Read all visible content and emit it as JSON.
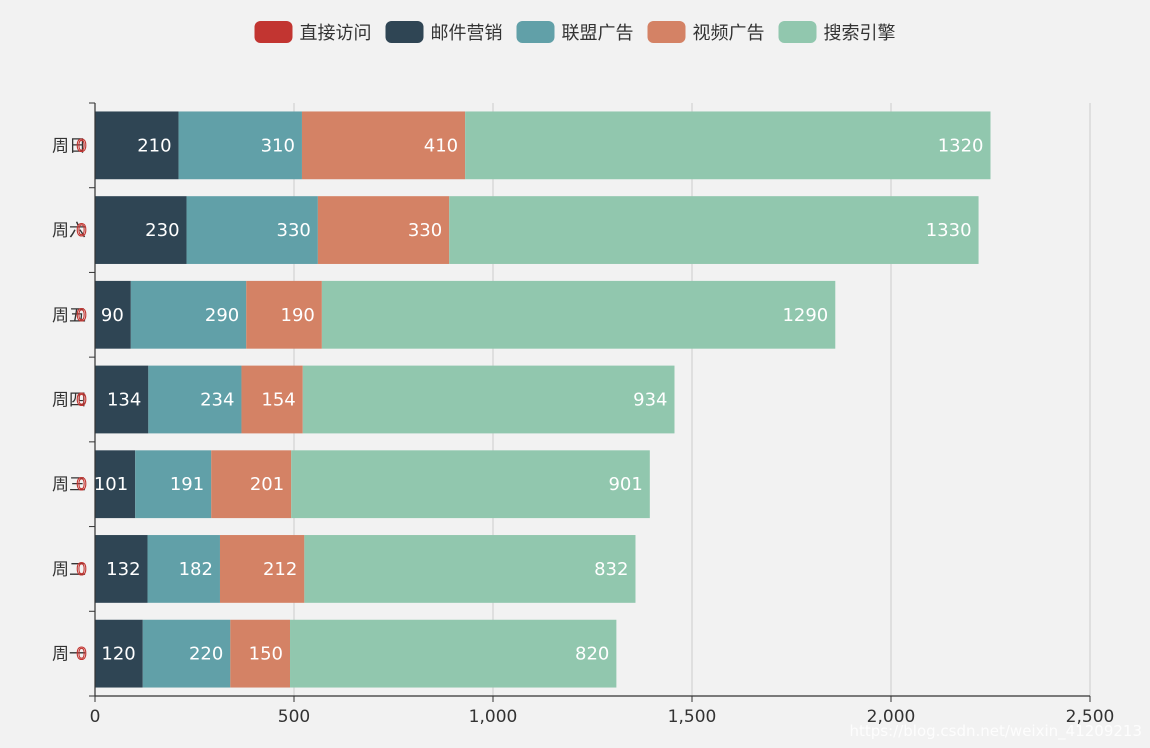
{
  "chart_data": {
    "type": "bar",
    "orientation": "horizontal",
    "stacked": true,
    "categories": [
      "周一",
      "周二",
      "周三",
      "周四",
      "周五",
      "周六",
      "周日"
    ],
    "series": [
      {
        "name": "直接访问",
        "color": "#c23531",
        "values": [
          0,
          0,
          0,
          0,
          0,
          0,
          0
        ]
      },
      {
        "name": "邮件营销",
        "color": "#2f4554",
        "values": [
          120,
          132,
          101,
          134,
          90,
          230,
          210
        ]
      },
      {
        "name": "联盟广告",
        "color": "#61a0a8",
        "values": [
          220,
          182,
          191,
          234,
          290,
          330,
          310
        ]
      },
      {
        "name": "视频广告",
        "color": "#d48265",
        "values": [
          150,
          212,
          201,
          154,
          190,
          330,
          410
        ]
      },
      {
        "name": "搜索引擎",
        "color": "#91c7ae",
        "values": [
          820,
          832,
          901,
          934,
          1290,
          1330,
          1320
        ]
      }
    ],
    "xlim": [
      0,
      2500
    ],
    "xticks": [
      0,
      500,
      1000,
      1500,
      2000,
      2500
    ],
    "xtick_labels": [
      "0",
      "500",
      "1,000",
      "1,500",
      "2,000",
      "2,500"
    ],
    "grid": true,
    "legend_position": "top-center",
    "title": "",
    "xlabel": "",
    "ylabel": ""
  },
  "watermark": "https://blog.csdn.net/weixin_41209213"
}
